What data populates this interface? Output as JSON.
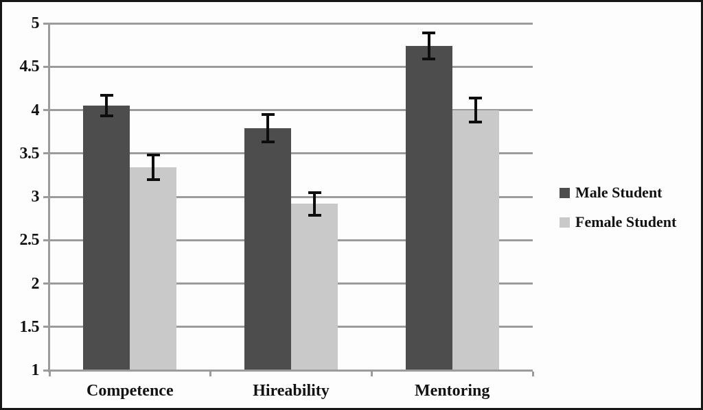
{
  "figure": {
    "background": "#fdfdfd",
    "border_color": "#161616"
  },
  "chart_data": {
    "type": "bar",
    "title": "",
    "xlabel": "",
    "ylabel": "",
    "categories": [
      "Competence",
      "Hireability",
      "Mentoring"
    ],
    "series": [
      {
        "name": "Male Student",
        "color": "#4d4d4d",
        "values": [
          4.05,
          3.79,
          4.74
        ],
        "errors": [
          0.12,
          0.16,
          0.15
        ]
      },
      {
        "name": "Female Student",
        "color": "#c9c9c9",
        "values": [
          3.34,
          2.92,
          4.0
        ],
        "errors": [
          0.14,
          0.13,
          0.14
        ]
      }
    ],
    "ylim": [
      1,
      5
    ],
    "ytick_step": 0.5,
    "yticks": [
      "5",
      "4.5",
      "4",
      "3.5",
      "3",
      "2.5",
      "2",
      "1.5",
      "1"
    ],
    "grid": true,
    "gridline_color": "#9b9b9b",
    "error_bar_color": "#0d0d0d",
    "axis_color": "#9b9b9b",
    "legend_position": "right",
    "legend_entries": [
      "Male Student",
      "Female Student"
    ]
  }
}
